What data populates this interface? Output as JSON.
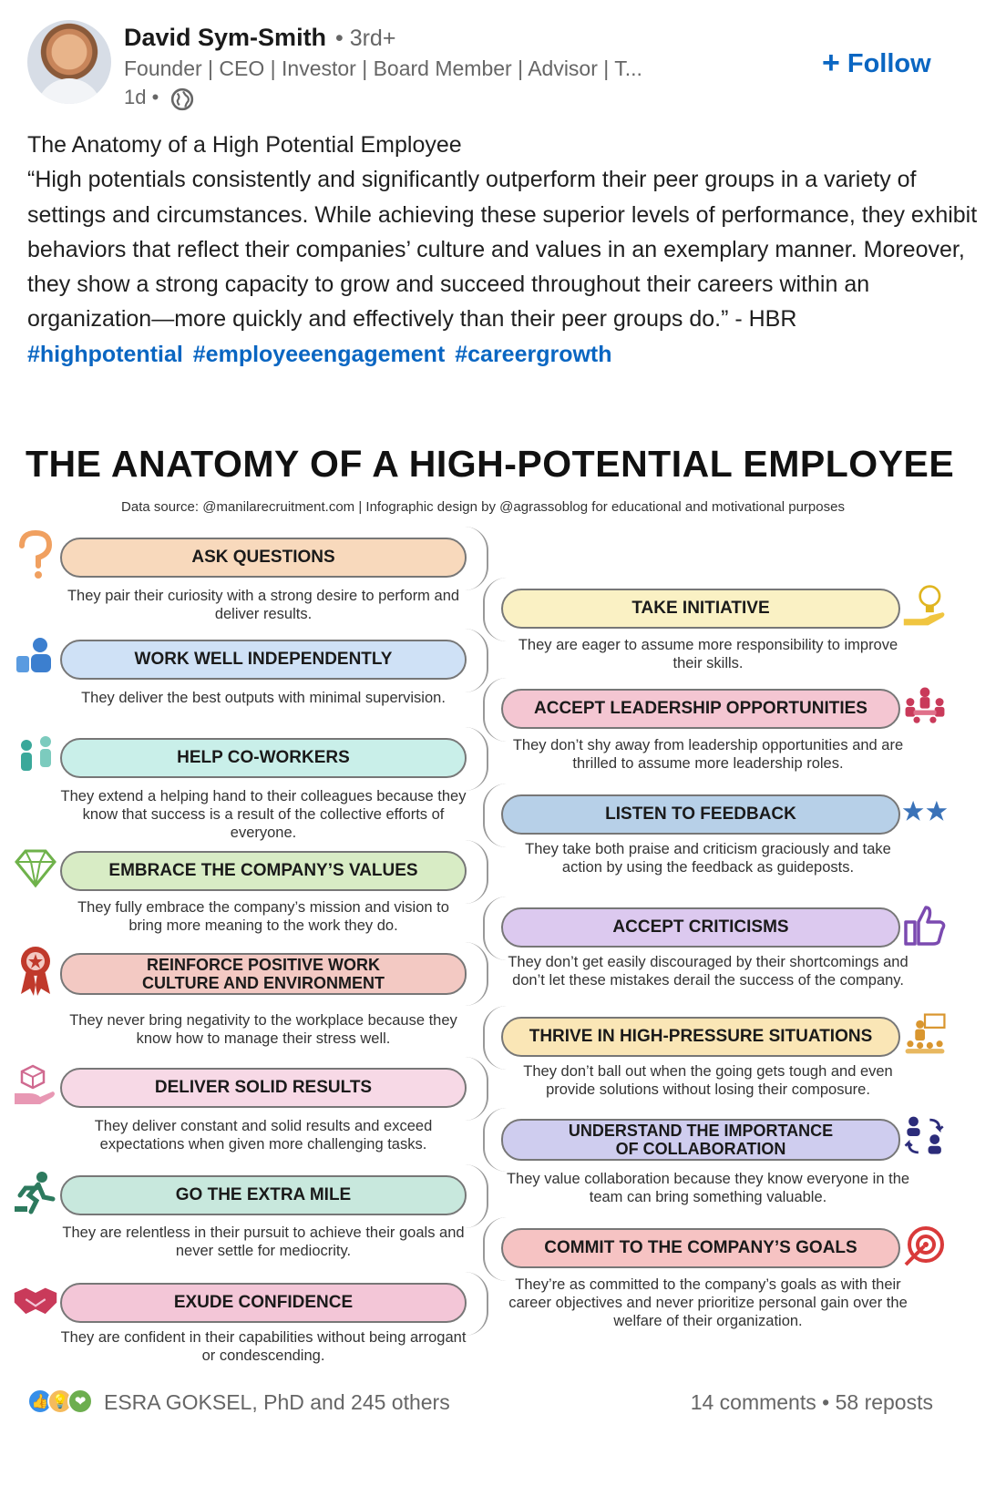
{
  "author": {
    "name": "David Sym-Smith",
    "degree": "• 3rd+",
    "headline": "Founder | CEO | Investor | Board Member | Advisor | T...",
    "time": "1d •",
    "follow_label": "Follow"
  },
  "post": {
    "title": "The Anatomy of a High Potential Employee",
    "quote": "“High potentials consistently and significantly outperform their peer groups in a variety of settings and circumstances. While achieving these superior levels of performance, they exhibit behaviors that reflect their companies’ culture and values in an exemplary manner. Moreover, they show a strong capacity to grow and succeed throughout their careers within an organization—more quickly and effectively than their peer groups do.” - HBR",
    "hashtags": [
      "#highpotential",
      "#employeeengagement",
      "#careergrowth"
    ]
  },
  "infographic": {
    "title": "THE ANATOMY OF A HIGH-POTENTIAL EMPLOYEE",
    "source": "Data source: @manilarecruitment.com | Infographic design by @agrassoblog for educational and motivational purposes",
    "left": [
      {
        "label": "ASK QUESTIONS",
        "desc": "They pair their curiosity with a strong desire to perform and deliver results.",
        "color": "#f8d9bc",
        "icon": "question-mark-icon"
      },
      {
        "label": "WORK WELL INDEPENDENTLY",
        "desc": "They deliver the best outputs with minimal supervision.",
        "color": "#cfe1f6",
        "icon": "worker-desk-icon"
      },
      {
        "label": "HELP CO-WORKERS",
        "desc": "They extend a helping hand to their colleagues because they know that success is a result of the collective efforts of everyone.",
        "color": "#c9efe9",
        "icon": "helping-people-icon"
      },
      {
        "label": "EMBRACE THE COMPANY’S VALUES",
        "desc": "They fully embrace the company’s mission and vision to bring more meaning to the work they do.",
        "color": "#d8ecc5",
        "icon": "diamond-icon"
      },
      {
        "label": "REINFORCE POSITIVE WORK CULTURE AND ENVIRONMENT",
        "desc": "They never bring negativity to the workplace because they know how to manage their stress well.",
        "color": "#f3c9c3",
        "icon": "award-ribbon-icon"
      },
      {
        "label": "DELIVER SOLID RESULTS",
        "desc": "They deliver constant and solid results and exceed expectations when given more challenging tasks.",
        "color": "#f7d9e6",
        "icon": "box-hand-icon"
      },
      {
        "label": "GO THE EXTRA MILE",
        "desc": "They are relentless in their pursuit to achieve their goals and never settle for mediocrity.",
        "color": "#c8e8dd",
        "icon": "running-person-icon"
      },
      {
        "label": "EXUDE CONFIDENCE",
        "desc": "They are confident in their capabilities without being arrogant or condescending.",
        "color": "#f3c6d7",
        "icon": "handshake-icon"
      }
    ],
    "right": [
      {
        "label": "TAKE INITIATIVE",
        "desc": "They are eager to assume more responsibility to improve their skills.",
        "color": "#faf1c4",
        "icon": "lightbulb-hand-icon"
      },
      {
        "label": "ACCEPT LEADERSHIP OPPORTUNITIES",
        "desc": "They don’t shy away from leadership opportunities and are thrilled to assume more leadership roles.",
        "color": "#f4c6d2",
        "icon": "team-meeting-icon"
      },
      {
        "label": "LISTEN TO FEEDBACK",
        "desc": "They take both praise and criticism graciously and take action by using the feedback as guideposts.",
        "color": "#b7d0e8",
        "icon": "stars-icon"
      },
      {
        "label": "ACCEPT CRITICISMS",
        "desc": "They don’t get easily discouraged by their shortcomings and don’t let these mistakes derail the success of the company.",
        "color": "#dcc9ef",
        "icon": "thumbs-up-icon"
      },
      {
        "label": "THRIVE IN HIGH-PRESSURE SITUATIONS",
        "desc": "They don’t ball out when the going gets tough and even provide solutions without losing their composure.",
        "color": "#fae6b6",
        "icon": "presenter-icon"
      },
      {
        "label": "UNDERSTAND THE IMPORTANCE OF COLLABORATION",
        "desc": "They value collaboration because they know everyone in the team can bring something valuable.",
        "color": "#cfcdef",
        "icon": "exchange-people-icon"
      },
      {
        "label": "COMMIT TO THE COMPANY’S GOALS",
        "desc": "They’re as committed to the company’s goals as with their career objectives and never prioritize personal gain over the welfare of their organization.",
        "color": "#f6c3c3",
        "icon": "target-icon"
      }
    ]
  },
  "footer": {
    "reactions_text": "ESRA GOKSEL, PhD and 245 others",
    "comments": "14 comments",
    "separator": "•",
    "reposts": "58 reposts"
  },
  "colors": {
    "brand_blue": "#0a66c2",
    "muted_text": "#666666"
  }
}
